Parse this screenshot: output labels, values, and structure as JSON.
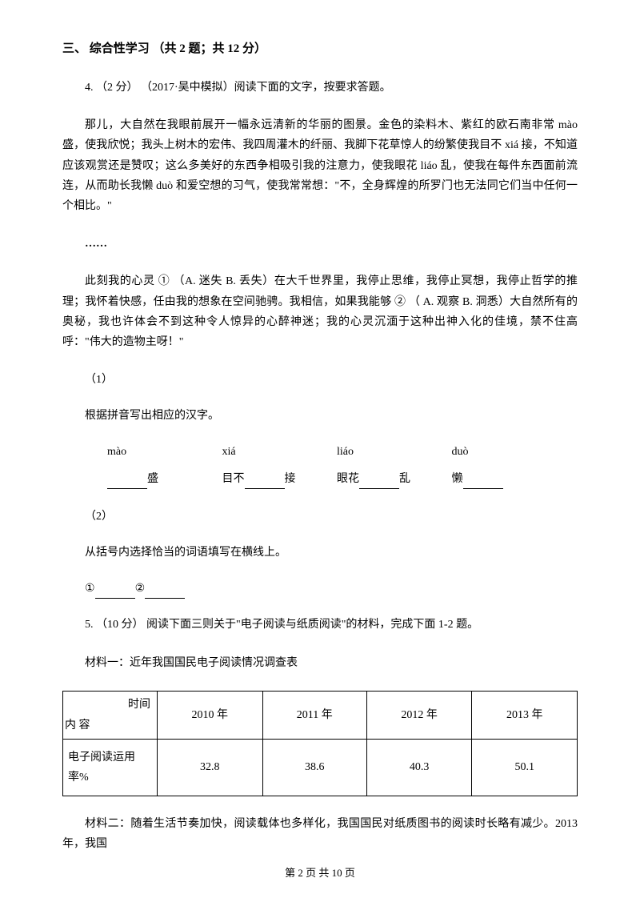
{
  "section_title": "三、 综合性学习 （共 2 题；共 12 分）",
  "q4": {
    "header": "4. （2 分） （2017·吴中模拟）阅读下面的文字，按要求答题。",
    "p1": "那儿，大自然在我眼前展开一幅永远清新的华丽的图景。金色的染料木、紫红的欧石南非常 mào 盛，使我欣悦；我头上树木的宏伟、我四周灌木的纤丽、我脚下花草惊人的纷繁使我目不 xiá 接，不知道应该观赏还是赞叹；这么多美好的东西争相吸引我的注意力，使我眼花 liáo 乱，使我在每件东西面前流连，从而助长我懒 duò 和爱空想的习气，使我常常想：\"不，全身辉煌的所罗门也无法同它们当中任何一个相比。\"",
    "ellipsis": "……",
    "p2": "此刻我的心灵  ① （A. 迷失   B. 丢失）在大千世界里，我停止思维，我停止冥想，我停止哲学的推理；我怀着快感，任由我的想象在空间驰骋。我相信，如果我能够  ② （ A. 观察   B. 洞悉）大自然所有的奥秘，我也许体会不到这种令人惊异的心醉神迷；我的心灵沉湎于这种出神入化的佳境，禁不住高呼：\"伟大的造物主呀！\"",
    "sub1_label": "（1）",
    "sub1_text": "根据拼音写出相应的汉字。",
    "pinyin": [
      "mào",
      "xiá",
      "liáo",
      "duò"
    ],
    "blank_suffix": [
      "盛",
      "接",
      "乱",
      ""
    ],
    "blank_prefix": [
      "",
      "目不",
      "眼花",
      "懒"
    ],
    "sub2_label": "（2）",
    "sub2_text": "从括号内选择恰当的词语填写在横线上。",
    "choice_line": "①________②________"
  },
  "q5": {
    "header": "5. （10 分） 阅读下面三则关于\"电子阅读与纸质阅读\"的材料，完成下面 1-2 题。",
    "mat1_label": "材料一：近年我国国民电子阅读情况调查表",
    "table": {
      "diag_top": "时间",
      "diag_bot": "内 容",
      "cols": [
        "2010 年",
        "2011 年",
        "2012 年",
        "2013 年"
      ],
      "row_label": "电子阅读运用率%",
      "row_vals": [
        "32.8",
        "38.6",
        "40.3",
        "50.1"
      ]
    },
    "mat2_text": "材料二：随着生活节奏加快，阅读载体也多样化，我国国民对纸质图书的阅读时长略有减少。2013 年，我国"
  },
  "footer": "第 2 页 共 10 页"
}
